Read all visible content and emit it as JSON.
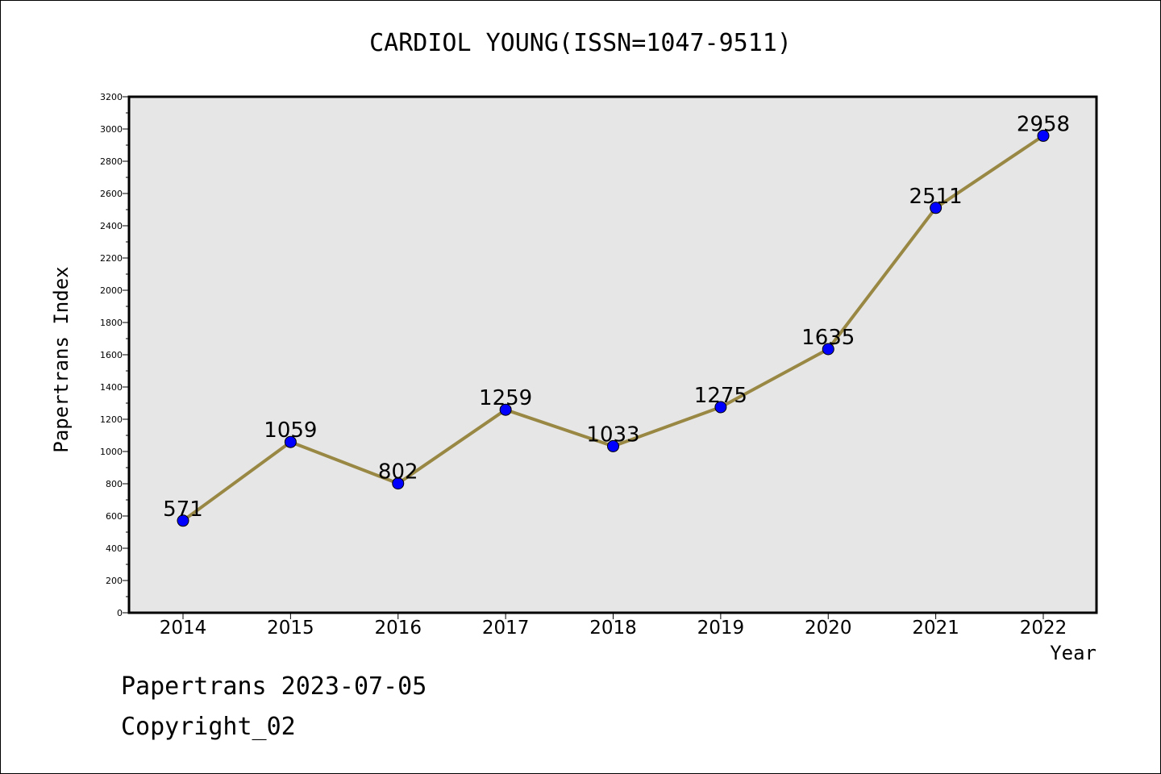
{
  "chart_data": {
    "type": "line",
    "title": "CARDIOL YOUNG(ISSN=1047-9511)",
    "xlabel": "Year",
    "ylabel": "Papertrans Index",
    "categories": [
      "2014",
      "2015",
      "2016",
      "2017",
      "2018",
      "2019",
      "2020",
      "2021",
      "2022"
    ],
    "series": [
      {
        "values": [
          571,
          1059,
          802,
          1259,
          1033,
          1275,
          1635,
          2511,
          2958
        ]
      }
    ],
    "ylim": [
      0,
      3200
    ],
    "yticks": [
      0,
      200,
      400,
      600,
      800,
      1000,
      1200,
      1400,
      1600,
      1800,
      2000,
      2200,
      2400,
      2600,
      2800,
      3000,
      3200
    ],
    "grid": false,
    "line_color": "#998844",
    "marker_color": "#0000ff",
    "plot_background": "#e6e6e6"
  },
  "footer": {
    "line1": "Papertrans 2023-07-05",
    "line2": "Copyright_02"
  }
}
